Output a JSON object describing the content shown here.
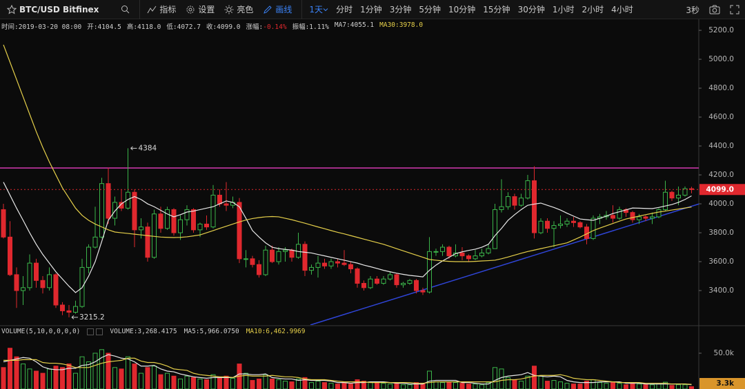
{
  "toolbar": {
    "symbol": "BTC/USD Bitfinex",
    "tools": [
      "指标",
      "设置",
      "亮色",
      "画线"
    ],
    "intervals": [
      "1天",
      "分时",
      "1分钟",
      "3分钟",
      "5分钟",
      "10分钟",
      "15分钟",
      "30分钟",
      "1小时",
      "2小时",
      "4小时"
    ],
    "refresh": "3秒"
  },
  "info": [
    {
      "k": "时间:",
      "v": "2019-03-20 08:00"
    },
    {
      "k": "开:",
      "v": "4104.5"
    },
    {
      "k": "高:",
      "v": "4118.0"
    },
    {
      "k": "低:",
      "v": "4072.7"
    },
    {
      "k": "收:",
      "v": "4099.0"
    },
    {
      "k": "涨幅:",
      "v": "-0.14%"
    },
    {
      "k": "振幅:",
      "v": "1.11%"
    },
    {
      "k": "MA7:",
      "v": "4055.1"
    },
    {
      "k": "MA30:",
      "v": "3978.0"
    }
  ],
  "volume_info": {
    "title": "VOLUME(5,10,0,0,0,0)",
    "items": [
      "VOLUME:3,268.4175",
      "MA5:5,966.0750",
      "MA10:6,462.9969"
    ]
  },
  "chart_data": [
    {
      "type": "candlestick",
      "up_color": "#3bb54a",
      "down_color": "#e0282e",
      "ylim": [
        3162,
        5267
      ],
      "yticks": [
        {
          "value": 5200,
          "label": "5200.0"
        },
        {
          "value": 5000,
          "label": "5000.0"
        },
        {
          "value": 4800,
          "label": "4800.0"
        },
        {
          "value": 4600,
          "label": "4600.0"
        },
        {
          "value": 4400,
          "label": "4400.0"
        },
        {
          "value": 4200,
          "label": "4200.0"
        },
        {
          "value": 4000,
          "label": "4000.0"
        },
        {
          "value": 3800,
          "label": "3800.0"
        },
        {
          "value": 3600,
          "label": "3600.0"
        },
        {
          "value": 3400,
          "label": "3400.0"
        }
      ],
      "last_price": {
        "value": 4099,
        "label": "4099.0"
      },
      "open": [
        3960,
        3770,
        3510,
        3400,
        3420,
        3590,
        3470,
        3420,
        3510,
        3300,
        3260,
        3250,
        3290,
        3560,
        3700,
        3770,
        4140,
        3900,
        4010,
        3970,
        4080,
        3820,
        3840,
        3630,
        3930,
        3830,
        3960,
        3800,
        3890,
        3960,
        3820,
        3860,
        3840,
        4060,
        4000,
        3990,
        4010,
        3620,
        3620,
        3580,
        3510,
        3680,
        3600,
        3670,
        3680,
        3630,
        3720,
        3540,
        3560,
        3590,
        3570,
        3600,
        3590,
        3580,
        3550,
        3450,
        3420,
        3480,
        3450,
        3480,
        3510,
        3440,
        3450,
        3470,
        3400,
        3390,
        3670,
        3670,
        3700,
        3640,
        3660,
        3640,
        3620,
        3640,
        3660,
        3690,
        3960,
        3980,
        4050,
        3990,
        4040,
        4160,
        3800,
        3880,
        3830,
        3850,
        3860,
        3880,
        3870,
        3840,
        3760,
        3900,
        3910,
        3920,
        3900,
        3960,
        3940,
        3890,
        3910,
        3900,
        3910,
        3960,
        4080,
        4040,
        4060,
        4104.5
      ],
      "high": [
        4000,
        3880,
        3560,
        3500,
        3650,
        3620,
        3500,
        3560,
        3520,
        3320,
        3300,
        3330,
        3620,
        3720,
        3980,
        4180,
        4250,
        4050,
        4100,
        4384,
        4100,
        3900,
        3870,
        3960,
        3980,
        3980,
        3970,
        3920,
        3990,
        3970,
        3870,
        3920,
        4130,
        4100,
        4150,
        4050,
        4040,
        3680,
        3640,
        3610,
        3710,
        3710,
        3700,
        3700,
        3690,
        3800,
        3740,
        3580,
        3640,
        3620,
        3620,
        3620,
        3680,
        3600,
        3560,
        3470,
        3500,
        3500,
        3500,
        3530,
        3520,
        3460,
        3480,
        3480,
        3420,
        3770,
        3690,
        3720,
        3710,
        3720,
        3700,
        3650,
        3680,
        3690,
        3720,
        4000,
        4170,
        4080,
        4070,
        4070,
        4200,
        4260,
        3900,
        3900,
        3880,
        3920,
        3900,
        3910,
        3880,
        3860,
        3920,
        3930,
        3950,
        3990,
        3980,
        3970,
        3950,
        3930,
        3920,
        3940,
        3970,
        4160,
        4090,
        4120,
        4120,
        4118
      ],
      "low": [
        3760,
        3500,
        3280,
        3300,
        3400,
        3420,
        3380,
        3400,
        3280,
        3230,
        3215.2,
        3240,
        3280,
        3520,
        3690,
        3760,
        3860,
        3850,
        3950,
        3960,
        3700,
        3760,
        3600,
        3620,
        3800,
        3820,
        3780,
        3750,
        3850,
        3800,
        3770,
        3820,
        3830,
        3980,
        3950,
        3970,
        3590,
        3560,
        3560,
        3490,
        3500,
        3590,
        3580,
        3600,
        3600,
        3620,
        3500,
        3510,
        3490,
        3550,
        3550,
        3560,
        3570,
        3520,
        3420,
        3400,
        3410,
        3440,
        3440,
        3470,
        3420,
        3420,
        3440,
        3380,
        3370,
        3380,
        3640,
        3640,
        3620,
        3630,
        3610,
        3600,
        3610,
        3630,
        3650,
        3690,
        3940,
        3960,
        3960,
        3980,
        4030,
        3760,
        3790,
        3800,
        3700,
        3830,
        3840,
        3840,
        3830,
        3720,
        3750,
        3860,
        3890,
        3870,
        3890,
        3910,
        3870,
        3860,
        3880,
        3860,
        3900,
        3950,
        4020,
        3990,
        4050,
        4072.7
      ],
      "close": [
        3770,
        3510,
        3400,
        3420,
        3590,
        3470,
        3420,
        3510,
        3300,
        3260,
        3250,
        3290,
        3560,
        3700,
        3770,
        4140,
        3900,
        4010,
        3970,
        4080,
        3820,
        3840,
        3630,
        3930,
        3830,
        3960,
        3800,
        3890,
        3960,
        3820,
        3860,
        3840,
        4060,
        4000,
        3990,
        4010,
        3620,
        3620,
        3580,
        3510,
        3680,
        3600,
        3670,
        3680,
        3630,
        3720,
        3540,
        3560,
        3590,
        3570,
        3600,
        3590,
        3580,
        3550,
        3450,
        3420,
        3480,
        3450,
        3480,
        3510,
        3440,
        3450,
        3470,
        3400,
        3390,
        3670,
        3670,
        3700,
        3640,
        3660,
        3640,
        3620,
        3640,
        3660,
        3690,
        3960,
        3980,
        4050,
        3990,
        4040,
        4160,
        3800,
        3880,
        3830,
        3850,
        3860,
        3880,
        3870,
        3840,
        3760,
        3900,
        3910,
        3920,
        3900,
        3960,
        3940,
        3890,
        3910,
        3900,
        3910,
        3960,
        4080,
        4040,
        4060,
        4104.5,
        4099
      ],
      "series": [
        {
          "name": "MA7",
          "color": "#e8e8e8",
          "values": [
            4150,
            4060,
            3970,
            3886,
            3800,
            3720,
            3650,
            3590,
            3530,
            3480,
            3430,
            3386,
            3420,
            3500,
            3600,
            3740,
            3886,
            3950,
            4000,
            4030,
            4050,
            4030,
            4000,
            3980,
            3955,
            3930,
            3910,
            3925,
            3943,
            3950,
            3960,
            3970,
            3980,
            4000,
            4020,
            4010,
            3980,
            3900,
            3815,
            3770,
            3730,
            3700,
            3690,
            3685,
            3680,
            3670,
            3665,
            3660,
            3650,
            3640,
            3630,
            3620,
            3610,
            3600,
            3590,
            3576,
            3565,
            3553,
            3540,
            3530,
            3520,
            3512,
            3505,
            3500,
            3495,
            3540,
            3576,
            3605,
            3630,
            3655,
            3668,
            3678,
            3686,
            3700,
            3720,
            3780,
            3830,
            3886,
            3925,
            3960,
            3990,
            3998,
            4005,
            3990,
            3975,
            3957,
            3935,
            3915,
            3895,
            3890,
            3886,
            3900,
            3915,
            3933,
            3945,
            3958,
            3971,
            3970,
            3968,
            3967,
            3975,
            3985,
            3995,
            4010,
            4030,
            4055.1
          ]
        },
        {
          "name": "MA30",
          "color": "#e6d04a",
          "values": [
            5100,
            4980,
            4860,
            4740,
            4620,
            4500,
            4390,
            4290,
            4200,
            4110,
            4040,
            3970,
            3920,
            3886,
            3860,
            3840,
            3820,
            3805,
            3800,
            3795,
            3790,
            3785,
            3780,
            3775,
            3770,
            3768,
            3767,
            3768,
            3772,
            3778,
            3785,
            3800,
            3815,
            3830,
            3845,
            3860,
            3875,
            3888,
            3898,
            3905,
            3910,
            3912,
            3910,
            3900,
            3890,
            3878,
            3866,
            3853,
            3840,
            3828,
            3815,
            3803,
            3792,
            3780,
            3768,
            3756,
            3744,
            3732,
            3720,
            3705,
            3690,
            3675,
            3660,
            3645,
            3630,
            3615,
            3610,
            3605,
            3602,
            3600,
            3600,
            3600,
            3602,
            3605,
            3607,
            3610,
            3620,
            3632,
            3645,
            3658,
            3670,
            3680,
            3690,
            3700,
            3710,
            3720,
            3730,
            3750,
            3770,
            3792,
            3815,
            3832,
            3848,
            3864,
            3880,
            3895,
            3905,
            3915,
            3925,
            3934,
            3943,
            3950,
            3957,
            3964,
            3971,
            3978
          ]
        }
      ]
    },
    {
      "type": "bar",
      "up_color": "#3bb54a",
      "down_color": "#e0282e",
      "last_color": "#d9952b",
      "ylim": [
        0,
        87500
      ],
      "yticks": [
        {
          "value": 50000,
          "label": "50.0k"
        }
      ],
      "last_value": {
        "value": 3268.4175,
        "label": "3.3k"
      },
      "values": [
        30000,
        57000,
        45000,
        35000,
        28000,
        25000,
        22000,
        28000,
        32000,
        30000,
        35000,
        22000,
        45000,
        38000,
        50000,
        55000,
        50000,
        30000,
        28000,
        45000,
        35000,
        22000,
        30000,
        32000,
        20000,
        22000,
        18000,
        14000,
        18000,
        16000,
        14000,
        13000,
        20000,
        16000,
        18000,
        15000,
        35000,
        22000,
        12000,
        14000,
        20000,
        14000,
        13000,
        11000,
        10000,
        14000,
        16000,
        9000,
        11000,
        9000,
        8000,
        7000,
        8000,
        7000,
        13000,
        11000,
        10000,
        9000,
        8000,
        7000,
        8000,
        6000,
        6000,
        9000,
        8000,
        25000,
        10000,
        9000,
        10000,
        9000,
        8000,
        7000,
        7000,
        6000,
        9000,
        30000,
        28000,
        16000,
        13000,
        11000,
        18000,
        32000,
        18000,
        11000,
        12000,
        10000,
        8000,
        7000,
        7000,
        11000,
        13000,
        9000,
        8000,
        9000,
        8000,
        6000,
        8000,
        7000,
        6000,
        6000,
        7000,
        9500,
        5000,
        6000,
        6000,
        3268.4175
      ],
      "series": [
        {
          "name": "MA5",
          "color": "#e8e8e8",
          "values": [
            38000,
            40000,
            42000,
            44000,
            43000,
            38000,
            31000,
            28000,
            27000,
            27000,
            29000,
            29000,
            33000,
            34000,
            38000,
            44000,
            48000,
            46000,
            43000,
            42000,
            38000,
            32000,
            32000,
            33000,
            28000,
            25000,
            24000,
            21000,
            19000,
            17000,
            16000,
            15000,
            16000,
            16000,
            16000,
            16000,
            21000,
            21000,
            20000,
            20000,
            21000,
            16000,
            15000,
            14000,
            14000,
            12000,
            13000,
            12000,
            12000,
            12000,
            11000,
            9000,
            9000,
            8000,
            9000,
            9000,
            10000,
            10000,
            10000,
            9000,
            8000,
            8000,
            7000,
            7000,
            7000,
            11000,
            12000,
            12000,
            12000,
            12000,
            9000,
            9000,
            8000,
            7000,
            7000,
            12000,
            16000,
            18000,
            19000,
            20000,
            23000,
            19000,
            18000,
            17000,
            18000,
            17000,
            12000,
            10000,
            9000,
            9000,
            9000,
            10000,
            10000,
            10000,
            10000,
            8000,
            8000,
            8000,
            7000,
            7000,
            7000,
            7000,
            7000,
            7000,
            7000,
            5966.075
          ]
        },
        {
          "name": "MA10",
          "color": "#e6d04a",
          "values": [
            40000,
            40000,
            40000,
            41000,
            41000,
            41000,
            37000,
            36000,
            36000,
            35000,
            33000,
            30000,
            30000,
            30000,
            33000,
            36000,
            38000,
            39000,
            40000,
            43000,
            43000,
            39000,
            37000,
            37000,
            35000,
            32000,
            28000,
            27000,
            26000,
            22000,
            20000,
            19000,
            18000,
            17000,
            17000,
            16000,
            18000,
            19000,
            18000,
            18000,
            18000,
            19000,
            18000,
            17000,
            17000,
            16000,
            14000,
            13000,
            13000,
            13000,
            12000,
            11000,
            10000,
            10000,
            10000,
            10000,
            9000,
            9000,
            9000,
            9000,
            9000,
            9000,
            9000,
            8000,
            8000,
            9000,
            10000,
            10000,
            10000,
            10000,
            10000,
            10000,
            10000,
            10000,
            10000,
            10000,
            12000,
            13000,
            13000,
            14000,
            16000,
            18000,
            19000,
            19000,
            19000,
            20000,
            18000,
            15000,
            14000,
            13000,
            13000,
            12000,
            11000,
            10000,
            9000,
            9000,
            9000,
            9000,
            8000,
            8000,
            8000,
            8000,
            7000,
            7000,
            7000,
            6462.9969
          ]
        }
      ]
    }
  ]
}
